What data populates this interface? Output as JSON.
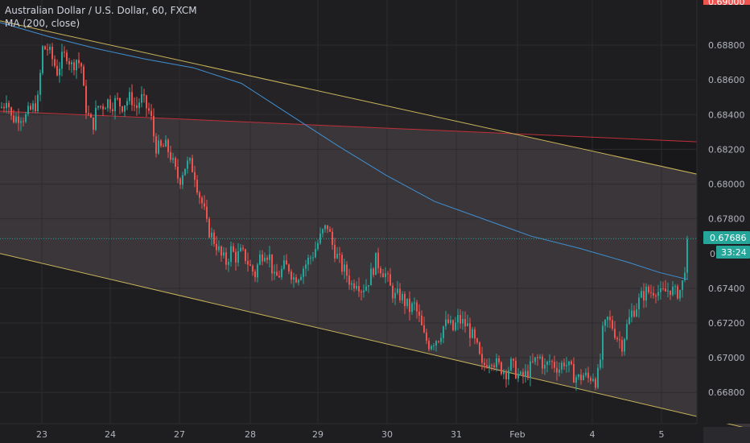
{
  "legend": {
    "title": "Australian Dollar / U.S. Dollar, 60, FXCM",
    "indicator": "MA (200, close)"
  },
  "colors": {
    "background": "#1e1e21",
    "channel_fill": "#3a3639",
    "grid": "#2c2c30",
    "up": "#26a69a",
    "down": "#ef5350",
    "ma": "#3f8fd3",
    "channel_line": "#c8b45a",
    "red_line": "#c0303a",
    "axis_text": "#b2b5be"
  },
  "price_tag": {
    "price": "0.67686",
    "countdown": "33:24",
    "partial": "0."
  },
  "chart_data": {
    "type": "candlestick",
    "title": "Australian Dollar / U.S. Dollar, 60, FXCM",
    "y_ticks": [
      "0.68800",
      "0.68600",
      "0.68400",
      "0.68200",
      "0.68000",
      "0.67800",
      "0.67400",
      "0.67200",
      "0.67000",
      "0.66800"
    ],
    "y_top_partial": "0.69000",
    "x_ticks": [
      "23",
      "24",
      "27",
      "28",
      "29",
      "30",
      "31",
      "Feb",
      "4",
      "5"
    ],
    "grid": true,
    "ylim": [
      0.6662,
      0.6906
    ],
    "close_path": [
      [
        0,
        0.6844
      ],
      [
        4,
        0.6846
      ],
      [
        8,
        0.6852
      ],
      [
        12,
        0.6838
      ],
      [
        18,
        0.6838
      ],
      [
        24,
        0.684
      ],
      [
        30,
        0.6838
      ],
      [
        36,
        0.6842
      ],
      [
        42,
        0.6845
      ],
      [
        46,
        0.6848
      ],
      [
        52,
        0.6878
      ],
      [
        58,
        0.6878
      ],
      [
        64,
        0.6872
      ],
      [
        70,
        0.6865
      ],
      [
        76,
        0.6872
      ],
      [
        82,
        0.6875
      ],
      [
        88,
        0.6868
      ],
      [
        94,
        0.6872
      ],
      [
        100,
        0.6868
      ],
      [
        104,
        0.6848
      ],
      [
        108,
        0.684
      ],
      [
        114,
        0.6833
      ],
      [
        120,
        0.6845
      ],
      [
        126,
        0.6845
      ],
      [
        132,
        0.6848
      ],
      [
        138,
        0.6846
      ],
      [
        144,
        0.6848
      ],
      [
        150,
        0.6845
      ],
      [
        156,
        0.6848
      ],
      [
        162,
        0.685
      ],
      [
        168,
        0.6843
      ],
      [
        174,
        0.685
      ],
      [
        180,
        0.6845
      ],
      [
        186,
        0.684
      ],
      [
        192,
        0.6822
      ],
      [
        198,
        0.682
      ],
      [
        204,
        0.6822
      ],
      [
        210,
        0.6818
      ],
      [
        216,
        0.6808
      ],
      [
        222,
        0.6802
      ],
      [
        228,
        0.681
      ],
      [
        234,
        0.6812
      ],
      [
        240,
        0.6808
      ],
      [
        246,
        0.6795
      ],
      [
        252,
        0.6786
      ],
      [
        256,
        0.6776
      ],
      [
        262,
        0.677
      ],
      [
        268,
        0.6765
      ],
      [
        274,
        0.6758
      ],
      [
        280,
        0.6755
      ],
      [
        286,
        0.6762
      ],
      [
        292,
        0.6758
      ],
      [
        298,
        0.676
      ],
      [
        304,
        0.6758
      ],
      [
        310,
        0.6752
      ],
      [
        316,
        0.6748
      ],
      [
        322,
        0.6758
      ],
      [
        328,
        0.6762
      ],
      [
        334,
        0.6758
      ],
      [
        340,
        0.6745
      ],
      [
        346,
        0.6748
      ],
      [
        352,
        0.6752
      ],
      [
        358,
        0.6752
      ],
      [
        364,
        0.6746
      ],
      [
        370,
        0.6748
      ],
      [
        376,
        0.6752
      ],
      [
        382,
        0.6756
      ],
      [
        388,
        0.676
      ],
      [
        394,
        0.6766
      ],
      [
        400,
        0.6772
      ],
      [
        406,
        0.6776
      ],
      [
        412,
        0.6765
      ],
      [
        418,
        0.6758
      ],
      [
        424,
        0.6752
      ],
      [
        430,
        0.6748
      ],
      [
        436,
        0.6742
      ],
      [
        442,
        0.6745
      ],
      [
        448,
        0.674
      ],
      [
        454,
        0.6742
      ],
      [
        460,
        0.6748
      ],
      [
        466,
        0.6756
      ],
      [
        472,
        0.6752
      ],
      [
        478,
        0.6748
      ],
      [
        484,
        0.674
      ],
      [
        490,
        0.6735
      ],
      [
        496,
        0.6736
      ],
      [
        502,
        0.6732
      ],
      [
        508,
        0.6728
      ],
      [
        514,
        0.673
      ],
      [
        520,
        0.6722
      ],
      [
        526,
        0.6712
      ],
      [
        532,
        0.6708
      ],
      [
        538,
        0.671
      ],
      [
        544,
        0.6712
      ],
      [
        550,
        0.6718
      ],
      [
        556,
        0.672
      ],
      [
        562,
        0.6716
      ],
      [
        568,
        0.6722
      ],
      [
        574,
        0.672
      ],
      [
        580,
        0.6718
      ],
      [
        586,
        0.6712
      ],
      [
        592,
        0.6705
      ],
      [
        598,
        0.6694
      ],
      [
        604,
        0.6698
      ],
      [
        610,
        0.67
      ],
      [
        616,
        0.6696
      ],
      [
        622,
        0.6694
      ],
      [
        628,
        0.6692
      ],
      [
        634,
        0.6696
      ],
      [
        640,
        0.6692
      ],
      [
        646,
        0.6688
      ],
      [
        652,
        0.669
      ],
      [
        658,
        0.6694
      ],
      [
        664,
        0.6698
      ],
      [
        670,
        0.67
      ],
      [
        676,
        0.6694
      ],
      [
        682,
        0.6698
      ],
      [
        688,
        0.6696
      ],
      [
        694,
        0.6694
      ],
      [
        700,
        0.6698
      ],
      [
        706,
        0.6694
      ],
      [
        712,
        0.669
      ],
      [
        718,
        0.6688
      ],
      [
        724,
        0.669
      ],
      [
        730,
        0.6688
      ],
      [
        736,
        0.669
      ],
      [
        740,
        0.6686
      ],
      [
        744,
        0.6694
      ],
      [
        748,
        0.6714
      ],
      [
        754,
        0.6722
      ],
      [
        760,
        0.6718
      ],
      [
        766,
        0.6712
      ],
      [
        772,
        0.6708
      ],
      [
        778,
        0.6718
      ],
      [
        784,
        0.6726
      ],
      [
        790,
        0.673
      ],
      [
        796,
        0.6735
      ],
      [
        802,
        0.6738
      ],
      [
        808,
        0.6738
      ],
      [
        814,
        0.674
      ],
      [
        820,
        0.6736
      ],
      [
        826,
        0.6738
      ],
      [
        832,
        0.674
      ],
      [
        838,
        0.6737
      ],
      [
        844,
        0.6739
      ],
      [
        848,
        0.6744
      ],
      [
        852,
        0.6762
      ],
      [
        855,
        0.6768
      ]
    ],
    "moving_average": [
      [
        0,
        0.6893
      ],
      [
        60,
        0.6885
      ],
      [
        120,
        0.6878
      ],
      [
        180,
        0.6872
      ],
      [
        240,
        0.6867
      ],
      [
        300,
        0.6858
      ],
      [
        360,
        0.684
      ],
      [
        420,
        0.6822
      ],
      [
        480,
        0.6805
      ],
      [
        540,
        0.679
      ],
      [
        600,
        0.678
      ],
      [
        660,
        0.677
      ],
      [
        720,
        0.6763
      ],
      [
        780,
        0.6755
      ],
      [
        820,
        0.6749
      ],
      [
        855,
        0.6745
      ]
    ],
    "channel_upper": [
      [
        0,
        0.6894
      ],
      [
        932,
        0.6799
      ]
    ],
    "channel_lower": [
      [
        0,
        0.676
      ],
      [
        932,
        0.6659
      ]
    ],
    "red_line": [
      [
        0,
        0.6842
      ],
      [
        932,
        0.6823
      ]
    ],
    "x_tick_positions": [
      52,
      137,
      223,
      311,
      395,
      481,
      567,
      643,
      736,
      822
    ],
    "last_price": 0.67686
  }
}
